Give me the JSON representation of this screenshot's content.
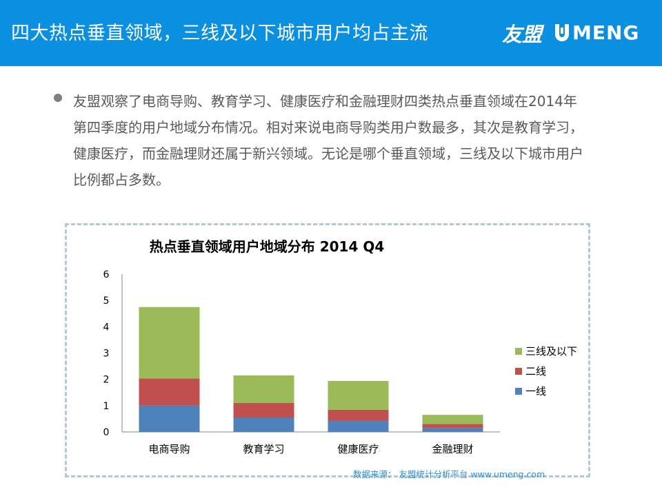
{
  "header": {
    "title": "四大热点垂直领域，三线及以下城市用户均占主流",
    "logo_cn": "友盟",
    "logo_en": "MENG",
    "background": "#0b8fe0"
  },
  "bullet": {
    "icon": "bullet-dot-icon",
    "text": "友盟观察了电商导购、教育学习、健康医疗和金融理财四类热点垂直领域在2014年第四季度的用户地域分布情况。相对来说电商导购类用户数最多，其次是教育学习，健康医疗，而金融理财还属于新兴领域。无论是哪个垂直领域，三线及以下城市用户比例都占多数。"
  },
  "chart_data": {
    "type": "bar",
    "stacked": true,
    "title": "热点垂直领域用户地域分布 2014 Q4",
    "categories": [
      "电商导购",
      "教育学习",
      "健康医疗",
      "金融理财"
    ],
    "series": [
      {
        "name": "一线",
        "color": "#4f81bd",
        "values": [
          1.0,
          0.55,
          0.42,
          0.15
        ]
      },
      {
        "name": "二线",
        "color": "#c0504d",
        "values": [
          1.03,
          0.55,
          0.42,
          0.15
        ]
      },
      {
        "name": "三线及以下",
        "color": "#9bbb59",
        "values": [
          2.72,
          1.05,
          1.1,
          0.35
        ]
      }
    ],
    "ylim": [
      0,
      6
    ],
    "yticks": [
      0,
      1,
      2,
      3,
      4,
      5,
      6
    ],
    "legend_order": [
      "三线及以下",
      "二线",
      "一线"
    ],
    "legend_position": "right",
    "grid": false
  },
  "source": "数据来源： 友盟统计分析平台 www.umeng.com"
}
